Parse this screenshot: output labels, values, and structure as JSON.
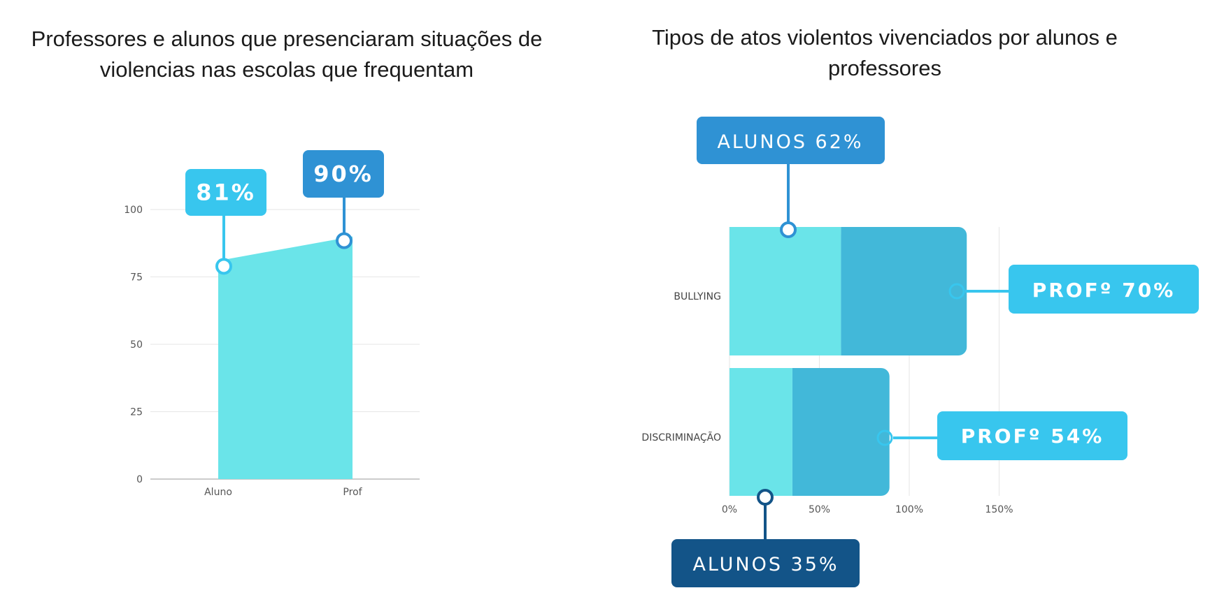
{
  "chart_data": [
    {
      "type": "area",
      "title": "Professores e alunos que presenciaram situações de violencias nas escolas que frequentam",
      "categories": [
        "Aluno",
        "Prof"
      ],
      "values": [
        81,
        90
      ],
      "ylim": [
        0,
        100
      ],
      "yticks": [
        0,
        25,
        50,
        75,
        100
      ],
      "grid": true,
      "color": "#6ae4e9",
      "annotations": [
        {
          "label": "81%",
          "category": "Aluno",
          "value": 81,
          "color": "#38c6ee"
        },
        {
          "label": "90%",
          "category": "Prof",
          "value": 90,
          "color": "#2f92d4"
        }
      ]
    },
    {
      "type": "bar",
      "orientation": "horizontal",
      "stacked": true,
      "title": "Tipos de atos violentos vivenciados por alunos e professores",
      "categories": [
        "BULLYING",
        "DISCRIMINAÇÃO"
      ],
      "series": [
        {
          "values": [
            62,
            35
          ],
          "color": "#6ae4e9"
        },
        {
          "values": [
            70,
            54
          ],
          "color": "#42b8d9"
        }
      ],
      "xlim": [
        0,
        150
      ],
      "xticks": [
        "0%",
        "50%",
        "100%",
        "150%"
      ],
      "xtick_values": [
        0,
        50,
        100,
        150
      ],
      "grid": true,
      "annotations": [
        {
          "label": "ALUNOS 62%",
          "color": "#2f92d4"
        },
        {
          "label": "PROFº 70%",
          "color": "#38c6ee"
        },
        {
          "label": "PROFº 54%",
          "color": "#38c6ee"
        },
        {
          "label": "ALUNOS 35%",
          "color": "#135488"
        }
      ]
    }
  ]
}
